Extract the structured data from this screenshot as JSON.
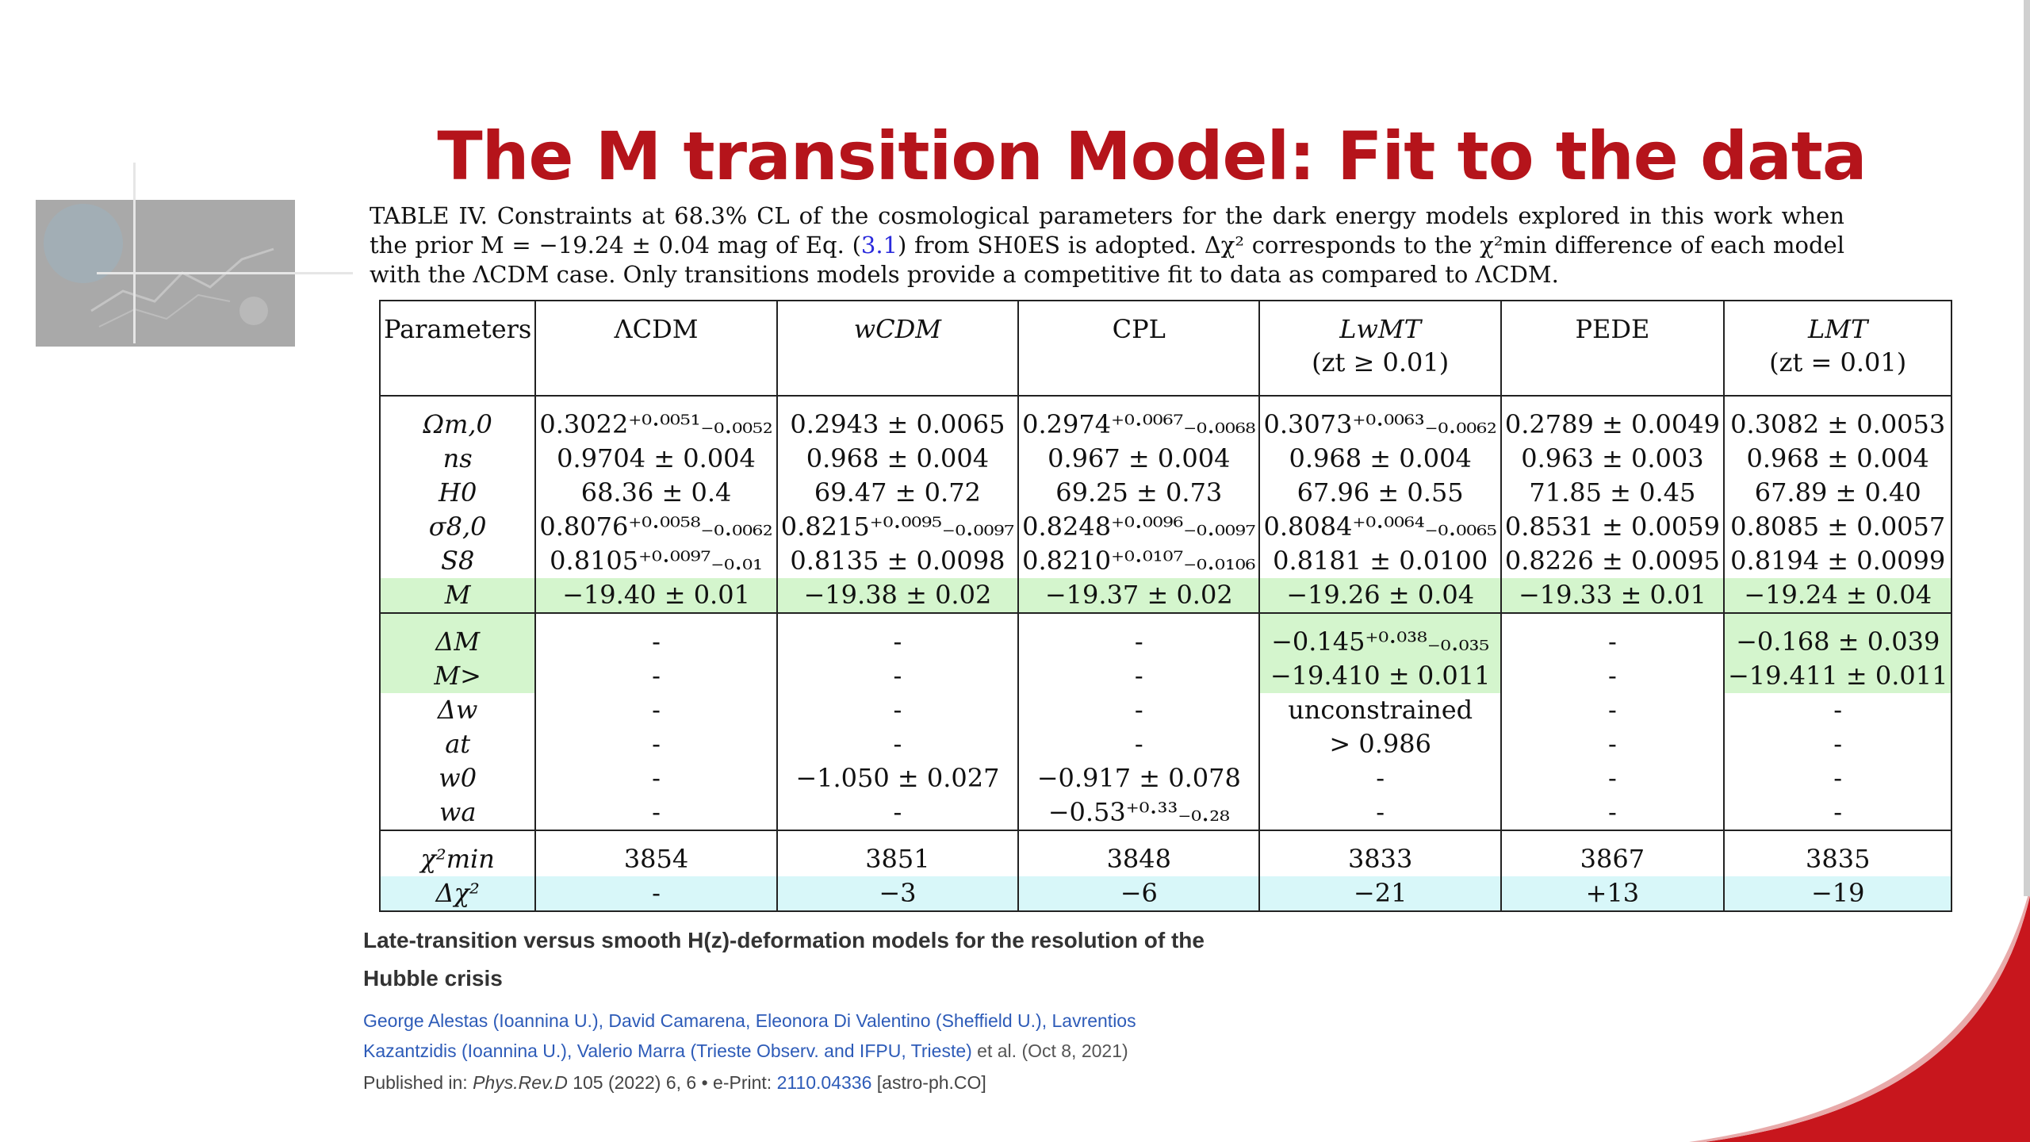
{
  "slide": {
    "title": "The M transition Model: Fit to the data",
    "accent_color": "#b5141b"
  },
  "caption": {
    "part1": "TABLE IV. Constraints at 68.3% CL of the cosmological parameters for the dark energy models explored in this work when the prior M = −19.24 ± 0.04 mag of Eq. (",
    "ref": "3.1",
    "part2": ") from SH0ES is adopted. Δχ² corresponds to the χ²min difference of each model with the ΛCDM case. Only transitions models provide a competitive fit to data as compared to ΛCDM."
  },
  "table": {
    "headers": [
      {
        "line1": "Parameters",
        "line2": ""
      },
      {
        "line1": "ΛCDM",
        "line2": ""
      },
      {
        "line1": "wCDM",
        "line2": ""
      },
      {
        "line1": "CPL",
        "line2": ""
      },
      {
        "line1": "LwMT",
        "line2": "(zt ≥ 0.01)"
      },
      {
        "line1": "PEDE",
        "line2": ""
      },
      {
        "line1": "LMT",
        "line2": "(zt = 0.01)"
      }
    ],
    "base_rows": [
      {
        "param": "Ωm,0",
        "cells": [
          "0.3022⁺⁰·⁰⁰⁵¹₋₀.₀₀₅₂",
          "0.2943 ± 0.0065",
          "0.2974⁺⁰·⁰⁰⁶⁷₋₀.₀₀₆₈",
          "0.3073⁺⁰·⁰⁰⁶³₋₀.₀₀₆₂",
          "0.2789 ± 0.0049",
          "0.3082 ± 0.0053"
        ]
      },
      {
        "param": "ns",
        "cells": [
          "0.9704 ± 0.004",
          "0.968 ± 0.004",
          "0.967 ± 0.004",
          "0.968 ± 0.004",
          "0.963 ± 0.003",
          "0.968 ± 0.004"
        ]
      },
      {
        "param": "H0",
        "cells": [
          "68.36 ± 0.4",
          "69.47 ± 0.72",
          "69.25 ± 0.73",
          "67.96 ± 0.55",
          "71.85 ± 0.45",
          "67.89 ± 0.40"
        ]
      },
      {
        "param": "σ8,0",
        "cells": [
          "0.8076⁺⁰·⁰⁰⁵⁸₋₀.₀₀₆₂",
          "0.8215⁺⁰·⁰⁰⁹⁵₋₀.₀₀₉₇",
          "0.8248⁺⁰·⁰⁰⁹⁶₋₀.₀₀₉₇",
          "0.8084⁺⁰·⁰⁰⁶⁴₋₀.₀₀₆₅",
          "0.8531 ± 0.0059",
          "0.8085 ± 0.0057"
        ]
      },
      {
        "param": "S8",
        "cells": [
          "0.8105⁺⁰·⁰⁰⁹⁷₋₀.₀₁",
          "0.8135 ± 0.0098",
          "0.8210⁺⁰·⁰¹⁰⁷₋₀.₀₁₀₆",
          "0.8181 ± 0.0100",
          "0.8226 ± 0.0095",
          "0.8194 ± 0.0099"
        ]
      },
      {
        "param": "M",
        "cells": [
          "−19.40 ± 0.01",
          "−19.38 ± 0.02",
          "−19.37 ± 0.02",
          "−19.26 ± 0.04",
          "−19.33 ± 0.01",
          "−19.24 ± 0.04"
        ]
      }
    ],
    "extra_rows": [
      {
        "param": "ΔM",
        "cells": [
          "-",
          "-",
          "-",
          "−0.145⁺⁰·⁰³⁸₋₀.₀₃₅",
          "-",
          "−0.168 ± 0.039"
        ]
      },
      {
        "param": "M>",
        "cells": [
          "-",
          "-",
          "-",
          "−19.410 ± 0.011",
          "-",
          "−19.411 ± 0.011"
        ]
      },
      {
        "param": "Δw",
        "cells": [
          "-",
          "-",
          "-",
          "unconstrained",
          "-",
          "-"
        ]
      },
      {
        "param": "at",
        "cells": [
          "-",
          "-",
          "-",
          "> 0.986",
          "-",
          "-"
        ]
      },
      {
        "param": "w0",
        "cells": [
          "-",
          "−1.050 ± 0.027",
          "−0.917 ± 0.078",
          "-",
          "-",
          "-"
        ]
      },
      {
        "param": "wa",
        "cells": [
          "-",
          "-",
          "−0.53⁺⁰·³³₋₀.₂₈",
          "-",
          "-",
          "-"
        ]
      }
    ],
    "fit_rows": [
      {
        "param": "χ²min",
        "cells": [
          "3854",
          "3851",
          "3848",
          "3833",
          "3867",
          "3835"
        ]
      },
      {
        "param": "Δχ²",
        "cells": [
          "-",
          "−3",
          "−6",
          "−21",
          "+13",
          "−19"
        ]
      }
    ]
  },
  "paper": {
    "title_line1": "Late-transition versus smooth H(z)-deformation models for the resolution of the",
    "title_line2": "Hubble crisis",
    "authors_line1": "George Alestas (Ioannina U.), David Camarena, Eleonora Di Valentino (Sheffield U.), Lavrentios",
    "authors_line2a": "Kazantzidis (Ioannina U.), Valerio Marra (Trieste Observ. and IFPU, Trieste)",
    "authors_line2b": " et al. (Oct 8, 2021)",
    "published_prefix": "Published in: ",
    "journal": "Phys.Rev.D",
    "journal_detail": " 105 (2022) 6, 6 • e-Print: ",
    "eprint": "2110.04336",
    "eprint_class": " [astro-ph.CO]"
  }
}
